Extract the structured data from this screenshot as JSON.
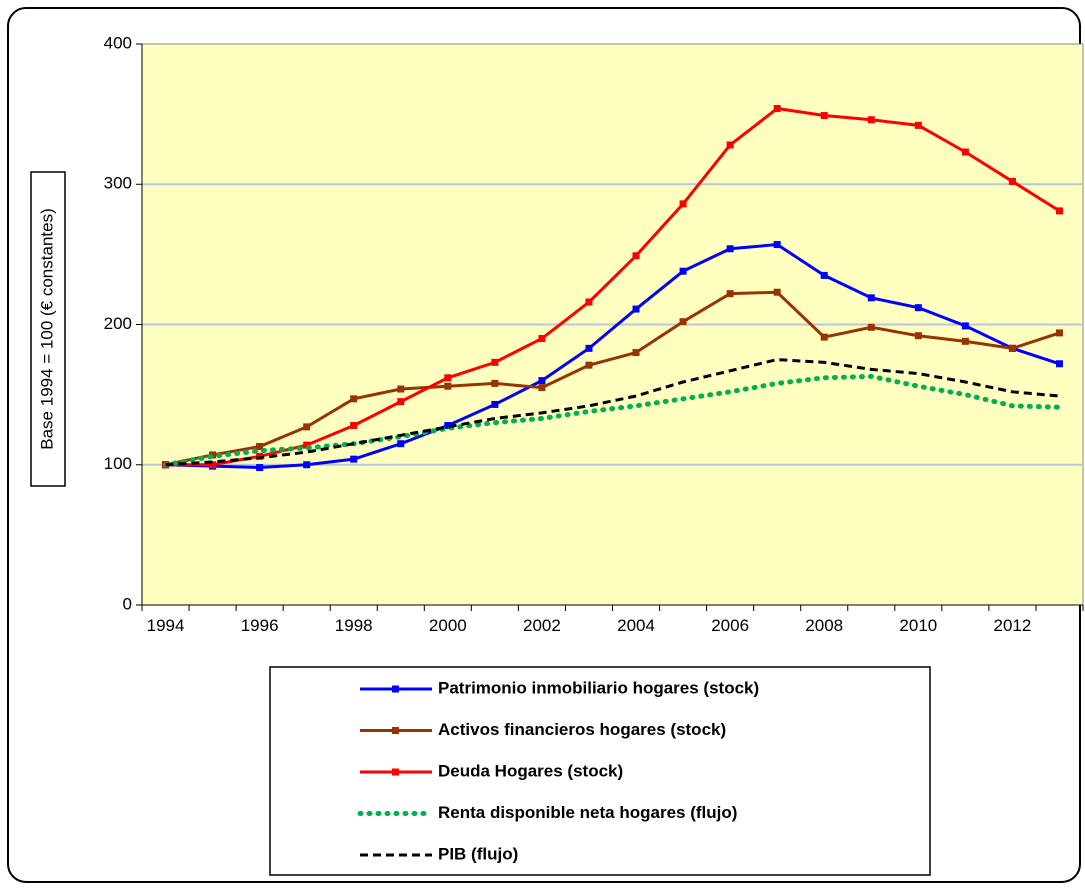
{
  "chart_data": {
    "type": "line",
    "y_label": "Base 1994 = 100 (€ constantes)",
    "categories": [
      "1994",
      null,
      "1996",
      null,
      "1998",
      null,
      "2000",
      null,
      "2002",
      null,
      "2004",
      null,
      "2006",
      null,
      "2008",
      null,
      "2010",
      null,
      "2012",
      null
    ],
    "ylim": [
      0,
      400
    ],
    "yticks": [
      0,
      100,
      200,
      300,
      400
    ],
    "grid": true,
    "series": [
      {
        "name": "Patrimonio inmobiliario hogares (stock)",
        "color": "#0000ff",
        "line_style": "solid",
        "marker": "square",
        "values": [
          100,
          99,
          98,
          100,
          104,
          115,
          128,
          143,
          160,
          183,
          211,
          238,
          254,
          257,
          235,
          219,
          212,
          199,
          183,
          172
        ]
      },
      {
        "name": "Activos financieros hogares (stock)",
        "color": "#993300",
        "line_style": "solid",
        "marker": "square",
        "values": [
          100,
          107,
          113,
          127,
          147,
          154,
          156,
          158,
          155,
          171,
          180,
          202,
          222,
          223,
          191,
          198,
          192,
          188,
          183,
          194
        ]
      },
      {
        "name": "Deuda Hogares (stock)",
        "color": "#ff0000",
        "line_style": "solid",
        "marker": "square",
        "values": [
          100,
          100,
          106,
          114,
          128,
          145,
          162,
          173,
          190,
          216,
          249,
          286,
          328,
          354,
          349,
          346,
          342,
          323,
          302,
          281
        ]
      },
      {
        "name": "Renta disponible neta hogares (flujo)",
        "color": "#00b050",
        "line_style": "dotted",
        "marker": null,
        "values": [
          100,
          106,
          110,
          112,
          115,
          120,
          126,
          130,
          133,
          138,
          142,
          147,
          152,
          158,
          162,
          163,
          156,
          150,
          142,
          141
        ]
      },
      {
        "name": "PIB (flujo)",
        "color": "#000000",
        "line_style": "dashed",
        "marker": null,
        "values": [
          100,
          102,
          105,
          109,
          115,
          121,
          127,
          133,
          137,
          142,
          149,
          159,
          167,
          175,
          173,
          168,
          165,
          159,
          152,
          149
        ]
      }
    ]
  }
}
